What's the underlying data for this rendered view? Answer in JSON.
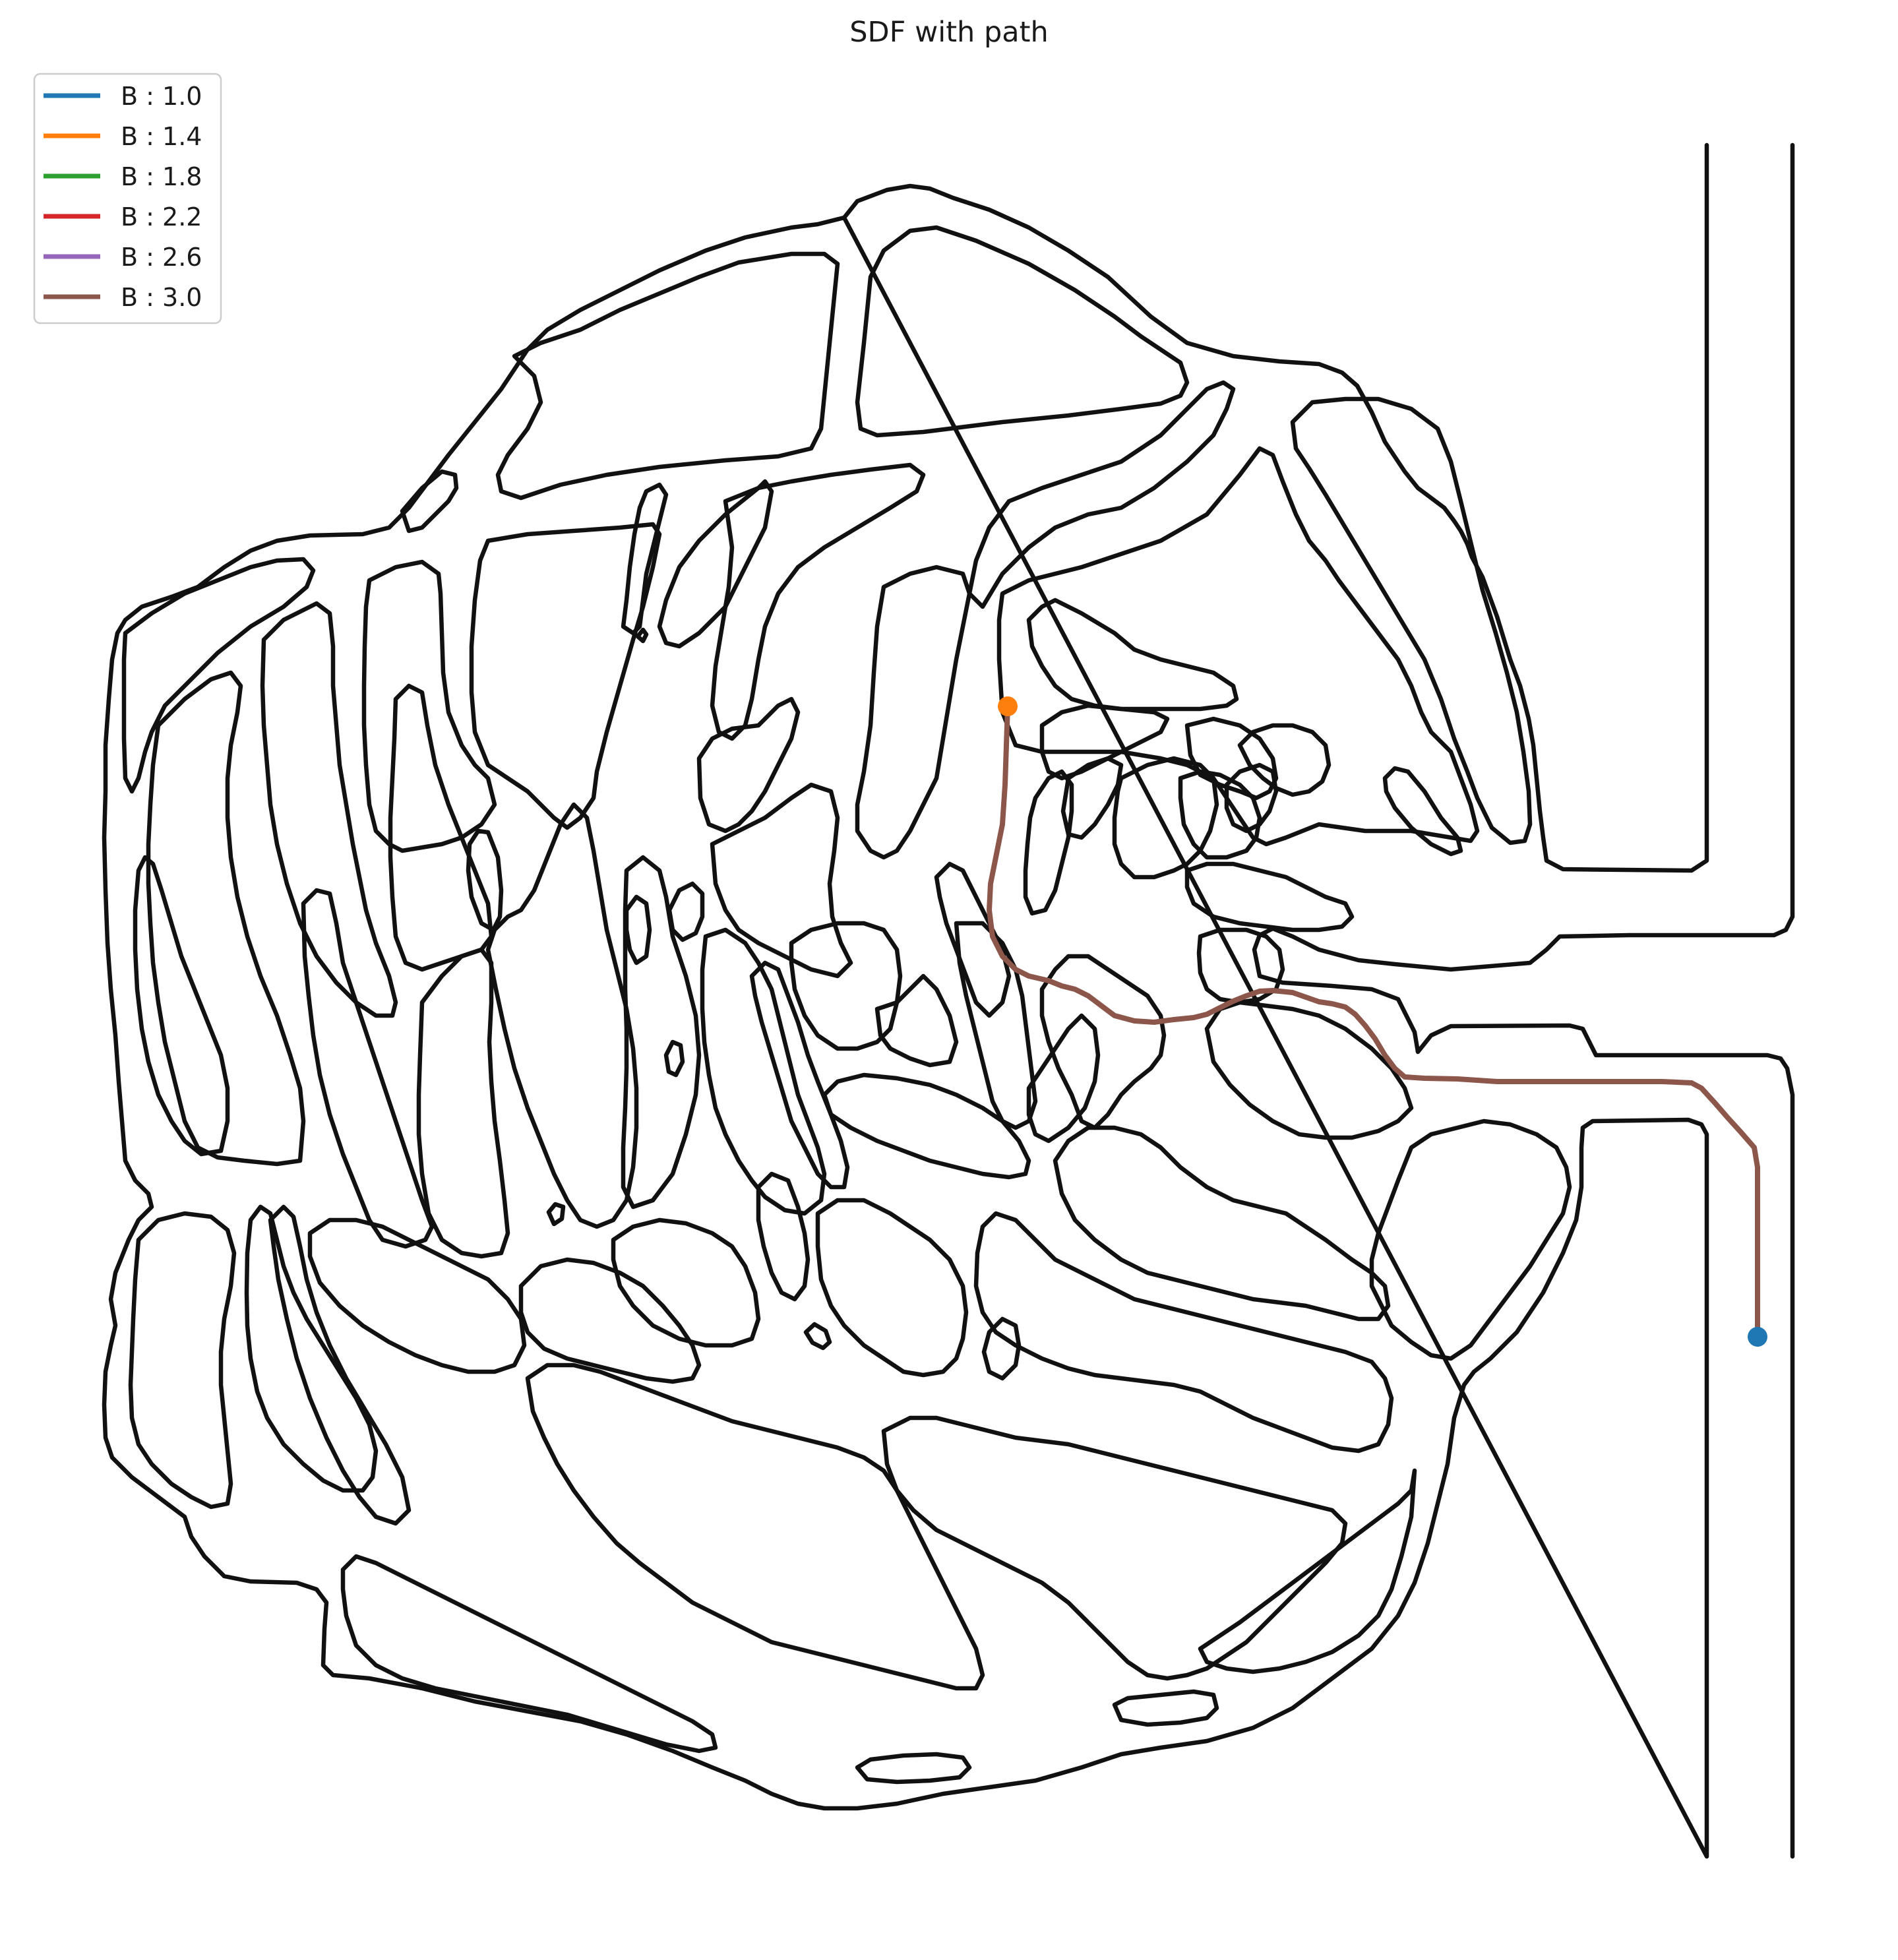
{
  "figure": {
    "title": "SDF with path",
    "legend": [
      {
        "label": "B : 1.0",
        "color": "#1f77b4"
      },
      {
        "label": "B : 1.4",
        "color": "#ff7f0e"
      },
      {
        "label": "B : 1.8",
        "color": "#2ca02c"
      },
      {
        "label": "B : 2.2",
        "color": "#d62728"
      },
      {
        "label": "B : 2.6",
        "color": "#9467bd"
      },
      {
        "label": "B : 3.0",
        "color": "#8c564b"
      }
    ],
    "wall_color": "#111111",
    "start_marker_color": "#ff7f0e",
    "end_marker_color": "#1f77b4",
    "path_color": "#8c564b"
  }
}
